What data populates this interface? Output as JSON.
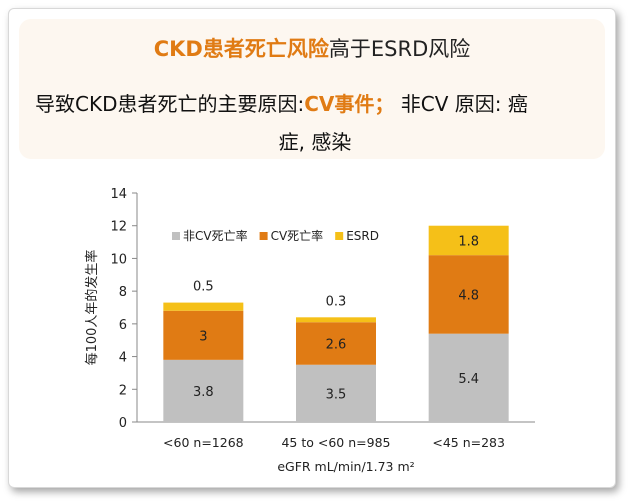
{
  "headline": {
    "accent": "CKD患者死亡风险",
    "rest": "高于ESRD风险"
  },
  "subline": {
    "part1": "导致CKD患者死亡的主要原因:",
    "accent": "CV事件；",
    "part2": " 非CV 原因: 癌",
    "line2": "症, 感染"
  },
  "colors": {
    "accent": "#e07b14",
    "non_cv": "#c0c0c0",
    "cv": "#e07b14",
    "esrd": "#f5c018"
  },
  "chart_data": {
    "type": "bar",
    "stacked": true,
    "categories": [
      "<60 n=1268",
      "45 to <60 n=985",
      "<45 n=283"
    ],
    "series": [
      {
        "name": "非CV死亡率",
        "values": [
          3.8,
          3.5,
          5.4
        ],
        "color": "#c0c0c0"
      },
      {
        "name": "CV死亡率",
        "values": [
          3,
          2.6,
          4.8
        ],
        "color": "#e07b14"
      },
      {
        "name": "ESRD",
        "values": [
          0.5,
          0.3,
          1.8
        ],
        "color": "#f5c018"
      }
    ],
    "ylabel": "每100人年的发生率",
    "xlabel": "eGFR mL/min/1.73 m²",
    "ylim": [
      0,
      14
    ],
    "yticks": [
      0,
      2,
      4,
      6,
      8,
      10,
      12,
      14
    ],
    "grid": false,
    "legend": "top-left"
  }
}
